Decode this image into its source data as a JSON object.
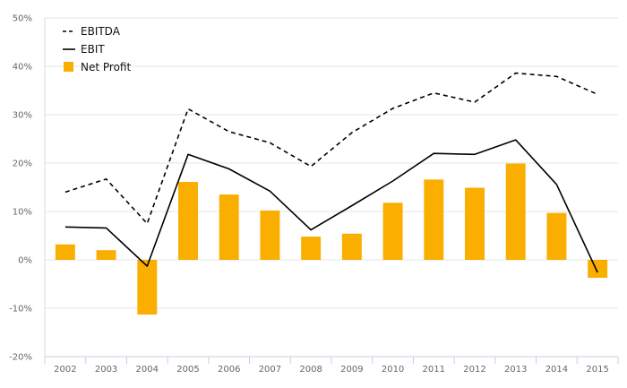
{
  "chart_data": {
    "type": "bar",
    "categories": [
      "2002",
      "2003",
      "2004",
      "2005",
      "2006",
      "2007",
      "2008",
      "2009",
      "2010",
      "2011",
      "2012",
      "2013",
      "2014",
      "2015"
    ],
    "series": [
      {
        "name": "EBITDA",
        "type": "line",
        "style": "dashed",
        "color": "#000000",
        "values": [
          14.0,
          16.7,
          7.5,
          31.2,
          26.5,
          24.2,
          19.3,
          26.3,
          31.3,
          34.5,
          32.6,
          38.6,
          37.9,
          34.2
        ]
      },
      {
        "name": "EBIT",
        "type": "line",
        "style": "solid",
        "color": "#000000",
        "values": [
          6.8,
          6.6,
          -1.3,
          21.8,
          18.8,
          14.2,
          6.2,
          11.2,
          16.3,
          22.0,
          21.8,
          24.8,
          15.6,
          -2.6
        ]
      },
      {
        "name": "Net Profit",
        "type": "bar",
        "color": "#f9ae00",
        "values": [
          3.2,
          2.0,
          -11.3,
          16.1,
          13.5,
          10.2,
          4.8,
          5.4,
          11.8,
          16.6,
          14.9,
          19.9,
          9.7,
          -3.7
        ]
      }
    ],
    "yticks": [
      "50%",
      "40%",
      "30%",
      "20%",
      "10%",
      "0%",
      "-10%",
      "-20%"
    ],
    "ylim": [
      -20,
      50
    ],
    "grid": true,
    "legend_position": "top-left"
  }
}
